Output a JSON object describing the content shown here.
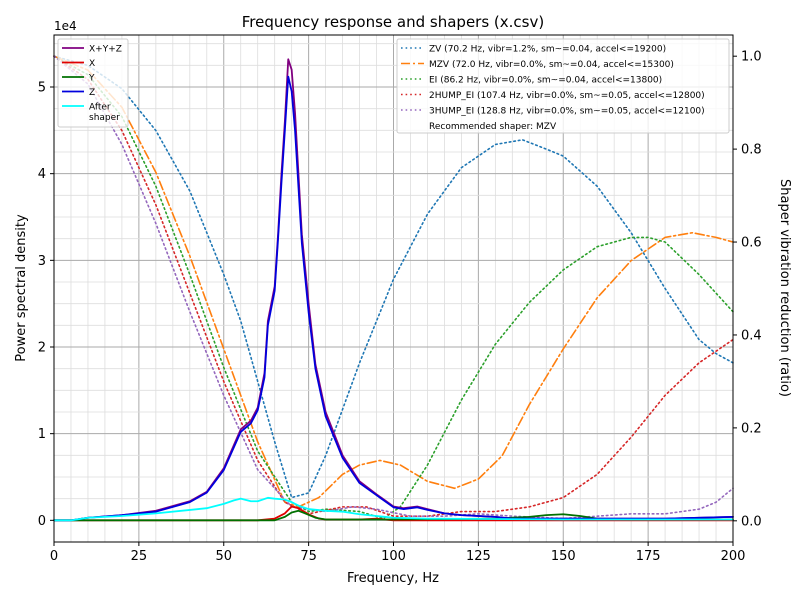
{
  "chart_data": {
    "type": "line",
    "title": "Frequency response and shapers (x.csv)",
    "xlabel": "Frequency, Hz",
    "ylabel": "Power spectral density",
    "y2label": "Shaper vibration reduction (ratio)",
    "y_multiplier_label": "1e4",
    "xlim": [
      0,
      200
    ],
    "ylim": [
      -2.5,
      56
    ],
    "y2lim": [
      -0.0456,
      1.0456
    ],
    "xticks": [
      0,
      25,
      50,
      75,
      100,
      125,
      150,
      175,
      200
    ],
    "yticks": [
      0,
      1,
      2,
      3,
      4,
      5
    ],
    "y2ticks": [
      0.0,
      0.2,
      0.4,
      0.6,
      0.8,
      1.0
    ],
    "grid": true,
    "legend_left": "top-left",
    "legend_right": "top-right",
    "recommended_text": "Recommended shaper: MZV",
    "psd_series": [
      {
        "name": "X+Y+Z",
        "color": "#800080",
        "style": "solid",
        "points": [
          [
            0,
            0
          ],
          [
            5,
            0
          ],
          [
            10,
            0.3
          ],
          [
            20,
            0.6
          ],
          [
            30,
            1.1
          ],
          [
            40,
            2.2
          ],
          [
            45,
            3.3
          ],
          [
            50,
            6.0
          ],
          [
            55,
            10.5
          ],
          [
            58,
            11.5
          ],
          [
            60,
            13
          ],
          [
            62,
            17
          ],
          [
            63,
            23
          ],
          [
            65,
            27
          ],
          [
            66,
            33
          ],
          [
            67,
            40
          ],
          [
            68,
            46
          ],
          [
            69,
            53.2
          ],
          [
            70,
            52
          ],
          [
            71,
            47
          ],
          [
            72,
            40
          ],
          [
            73,
            33
          ],
          [
            75,
            25
          ],
          [
            77,
            18
          ],
          [
            80,
            12.5
          ],
          [
            85,
            7.5
          ],
          [
            90,
            4.5
          ],
          [
            95,
            3.0
          ],
          [
            100,
            1.6
          ],
          [
            103,
            1.4
          ],
          [
            107,
            1.6
          ],
          [
            110,
            1.3
          ],
          [
            115,
            0.8
          ],
          [
            120,
            0.6
          ],
          [
            125,
            0.5
          ],
          [
            130,
            0.4
          ],
          [
            135,
            0.2
          ],
          [
            140,
            0.2
          ],
          [
            150,
            0.2
          ],
          [
            160,
            0.2
          ],
          [
            170,
            0.2
          ],
          [
            180,
            0.2
          ],
          [
            190,
            0.3
          ],
          [
            200,
            0.4
          ]
        ]
      },
      {
        "name": "X",
        "color": "#e00000",
        "style": "solid",
        "points": [
          [
            0,
            0
          ],
          [
            60,
            0
          ],
          [
            65,
            0.2
          ],
          [
            68,
            0.8
          ],
          [
            70,
            1.6
          ],
          [
            72,
            1.4
          ],
          [
            75,
            0.7
          ],
          [
            78,
            0.2
          ],
          [
            80,
            0.1
          ],
          [
            90,
            0.1
          ],
          [
            95,
            0.2
          ],
          [
            100,
            0
          ],
          [
            200,
            0
          ]
        ]
      },
      {
        "name": "Y",
        "color": "#007000",
        "style": "solid",
        "points": [
          [
            0,
            0
          ],
          [
            65,
            0
          ],
          [
            68,
            0.4
          ],
          [
            70,
            0.9
          ],
          [
            72,
            1.1
          ],
          [
            74,
            0.8
          ],
          [
            77,
            0.3
          ],
          [
            80,
            0.1
          ],
          [
            95,
            0.1
          ],
          [
            100,
            0.1
          ],
          [
            130,
            0.2
          ],
          [
            140,
            0.4
          ],
          [
            145,
            0.6
          ],
          [
            150,
            0.7
          ],
          [
            155,
            0.5
          ],
          [
            160,
            0.2
          ],
          [
            170,
            0.1
          ],
          [
            200,
            0.1
          ]
        ]
      },
      {
        "name": "Z",
        "color": "#0000dd",
        "style": "solid",
        "points": [
          [
            0,
            0
          ],
          [
            5,
            0
          ],
          [
            10,
            0.3
          ],
          [
            20,
            0.6
          ],
          [
            30,
            1.0
          ],
          [
            40,
            2.1
          ],
          [
            45,
            3.2
          ],
          [
            50,
            5.8
          ],
          [
            55,
            10.2
          ],
          [
            58,
            11.2
          ],
          [
            60,
            12.7
          ],
          [
            62,
            16.5
          ],
          [
            63,
            22.5
          ],
          [
            65,
            26.5
          ],
          [
            66,
            32.5
          ],
          [
            67,
            39
          ],
          [
            68,
            45
          ],
          [
            69,
            51.2
          ],
          [
            70,
            49.5
          ],
          [
            71,
            45
          ],
          [
            72,
            38.5
          ],
          [
            73,
            32
          ],
          [
            75,
            24
          ],
          [
            77,
            17.5
          ],
          [
            80,
            12
          ],
          [
            85,
            7.2
          ],
          [
            90,
            4.3
          ],
          [
            95,
            2.9
          ],
          [
            100,
            1.5
          ],
          [
            103,
            1.3
          ],
          [
            107,
            1.5
          ],
          [
            110,
            1.2
          ],
          [
            115,
            0.8
          ],
          [
            120,
            0.6
          ],
          [
            125,
            0.5
          ],
          [
            130,
            0.4
          ],
          [
            135,
            0.2
          ],
          [
            140,
            0.2
          ],
          [
            150,
            0.2
          ],
          [
            160,
            0.2
          ],
          [
            170,
            0.2
          ],
          [
            180,
            0.2
          ],
          [
            190,
            0.3
          ],
          [
            200,
            0.4
          ]
        ]
      },
      {
        "name": "After shaper",
        "color": "#00ffff",
        "style": "solid",
        "points": [
          [
            0,
            0
          ],
          [
            5,
            0
          ],
          [
            10,
            0.3
          ],
          [
            20,
            0.5
          ],
          [
            30,
            0.8
          ],
          [
            40,
            1.2
          ],
          [
            45,
            1.4
          ],
          [
            50,
            1.9
          ],
          [
            53,
            2.3
          ],
          [
            55,
            2.5
          ],
          [
            58,
            2.2
          ],
          [
            60,
            2.2
          ],
          [
            63,
            2.6
          ],
          [
            65,
            2.5
          ],
          [
            68,
            2.4
          ],
          [
            70,
            2.1
          ],
          [
            72,
            1.7
          ],
          [
            75,
            1.3
          ],
          [
            80,
            1.1
          ],
          [
            85,
            1.0
          ],
          [
            90,
            0.7
          ],
          [
            95,
            0.5
          ],
          [
            100,
            0.3
          ],
          [
            110,
            0.2
          ],
          [
            130,
            0.15
          ],
          [
            150,
            0.1
          ],
          [
            200,
            0.1
          ]
        ]
      }
    ],
    "shaper_series": [
      {
        "name": "ZV (70.2 Hz, vibr=1.2%, sm~=0.04, accel<=19200)",
        "color": "#1f77b4",
        "style": "dotted",
        "points": [
          [
            0,
            1.0
          ],
          [
            10,
            0.98
          ],
          [
            20,
            0.93
          ],
          [
            30,
            0.84
          ],
          [
            40,
            0.71
          ],
          [
            50,
            0.53
          ],
          [
            55,
            0.43
          ],
          [
            60,
            0.3
          ],
          [
            65,
            0.17
          ],
          [
            70,
            0.05
          ],
          [
            75,
            0.06
          ],
          [
            80,
            0.14
          ],
          [
            90,
            0.34
          ],
          [
            100,
            0.52
          ],
          [
            110,
            0.66
          ],
          [
            120,
            0.76
          ],
          [
            130,
            0.81
          ],
          [
            138,
            0.82
          ],
          [
            145,
            0.8
          ],
          [
            150,
            0.785
          ],
          [
            160,
            0.72
          ],
          [
            170,
            0.62
          ],
          [
            180,
            0.5
          ],
          [
            190,
            0.39
          ],
          [
            195,
            0.36
          ],
          [
            200,
            0.34
          ]
        ]
      },
      {
        "name": "MZV (72.0 Hz, vibr=0.0%, sm~=0.04, accel<=15300)",
        "color": "#ff7f0e",
        "style": "dashdot",
        "points": [
          [
            0,
            1.0
          ],
          [
            10,
            0.97
          ],
          [
            20,
            0.89
          ],
          [
            30,
            0.75
          ],
          [
            40,
            0.57
          ],
          [
            50,
            0.37
          ],
          [
            60,
            0.17
          ],
          [
            68,
            0.04
          ],
          [
            72,
            0.03
          ],
          [
            78,
            0.05
          ],
          [
            85,
            0.1
          ],
          [
            90,
            0.12
          ],
          [
            96,
            0.13
          ],
          [
            102,
            0.12
          ],
          [
            110,
            0.085
          ],
          [
            118,
            0.07
          ],
          [
            125,
            0.09
          ],
          [
            132,
            0.14
          ],
          [
            140,
            0.25
          ],
          [
            150,
            0.37
          ],
          [
            160,
            0.48
          ],
          [
            170,
            0.56
          ],
          [
            180,
            0.61
          ],
          [
            188,
            0.62
          ],
          [
            195,
            0.61
          ],
          [
            200,
            0.6
          ]
        ]
      },
      {
        "name": "EI (86.2 Hz, vibr=0.0%, sm~=0.04, accel<=13800)",
        "color": "#2ca02c",
        "style": "dotted",
        "points": [
          [
            0,
            1.0
          ],
          [
            10,
            0.96
          ],
          [
            20,
            0.87
          ],
          [
            30,
            0.72
          ],
          [
            40,
            0.53
          ],
          [
            50,
            0.33
          ],
          [
            60,
            0.15
          ],
          [
            70,
            0.04
          ],
          [
            75,
            0.02
          ],
          [
            80,
            0.025
          ],
          [
            90,
            0.02
          ],
          [
            97,
            0.005
          ],
          [
            102,
            0.03
          ],
          [
            110,
            0.12
          ],
          [
            120,
            0.26
          ],
          [
            130,
            0.38
          ],
          [
            140,
            0.47
          ],
          [
            150,
            0.54
          ],
          [
            160,
            0.59
          ],
          [
            170,
            0.61
          ],
          [
            175,
            0.61
          ],
          [
            180,
            0.6
          ],
          [
            190,
            0.53
          ],
          [
            200,
            0.45
          ]
        ]
      },
      {
        "name": "2HUMP_EI (107.4 Hz, vibr=0.0%, sm~=0.05, accel<=12800)",
        "color": "#d62728",
        "style": "dotted",
        "points": [
          [
            0,
            1.0
          ],
          [
            10,
            0.95
          ],
          [
            20,
            0.84
          ],
          [
            30,
            0.68
          ],
          [
            40,
            0.49
          ],
          [
            50,
            0.3
          ],
          [
            60,
            0.13
          ],
          [
            68,
            0.04
          ],
          [
            75,
            0.015
          ],
          [
            85,
            0.03
          ],
          [
            92,
            0.03
          ],
          [
            100,
            0.01
          ],
          [
            110,
            0.01
          ],
          [
            120,
            0.02
          ],
          [
            130,
            0.02
          ],
          [
            140,
            0.03
          ],
          [
            150,
            0.05
          ],
          [
            160,
            0.1
          ],
          [
            170,
            0.18
          ],
          [
            180,
            0.27
          ],
          [
            190,
            0.34
          ],
          [
            200,
            0.39
          ]
        ]
      },
      {
        "name": "3HUMP_EI (128.8 Hz, vibr=0.0%, sm~=0.05, accel<=12100)",
        "color": "#9467bd",
        "style": "dotted",
        "points": [
          [
            0,
            1.0
          ],
          [
            10,
            0.94
          ],
          [
            20,
            0.81
          ],
          [
            30,
            0.64
          ],
          [
            40,
            0.45
          ],
          [
            50,
            0.27
          ],
          [
            60,
            0.11
          ],
          [
            70,
            0.03
          ],
          [
            80,
            0.02
          ],
          [
            88,
            0.03
          ],
          [
            95,
            0.025
          ],
          [
            105,
            0.01
          ],
          [
            115,
            0.01
          ],
          [
            125,
            0.015
          ],
          [
            135,
            0.01
          ],
          [
            150,
            0.005
          ],
          [
            160,
            0.01
          ],
          [
            170,
            0.015
          ],
          [
            180,
            0.015
          ],
          [
            190,
            0.025
          ],
          [
            195,
            0.04
          ],
          [
            200,
            0.07
          ]
        ]
      }
    ]
  }
}
